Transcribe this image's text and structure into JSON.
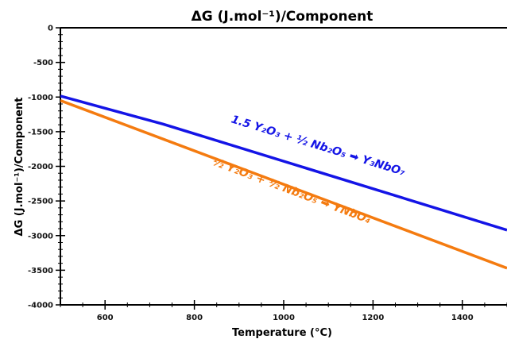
{
  "chart_data": {
    "type": "line",
    "title": "ΔG (J.mol⁻¹)/Component",
    "xlabel": "Temperature (°C)",
    "ylabel": "ΔG (J.mol⁻¹)/Component",
    "xlim": [
      500,
      1500
    ],
    "ylim": [
      -4000,
      0
    ],
    "xticks": [
      600,
      800,
      1000,
      1200,
      1400
    ],
    "yticks": [
      0,
      -500,
      -1000,
      -1500,
      -2000,
      -2500,
      -3000,
      -3500,
      -4000
    ],
    "grid": false,
    "series": [
      {
        "name": "1.5 Y₂O₃ + ½ Nb₂O₅ → Y₃NbO₇",
        "color": "#1414e6",
        "x": [
          500,
          730,
          1500
        ],
        "y": [
          -985,
          -1390,
          -2920
        ]
      },
      {
        "name": "½ Y₂O₃ + ½ Nb₂O₅ → YNbO₄",
        "color": "#f47b10",
        "x": [
          500,
          1500
        ],
        "y": [
          -1050,
          -3470
        ]
      }
    ],
    "annotations": [
      {
        "series": 0,
        "text": "1.5 Y₂O₃ + ½ Nb₂O₅ ➡ Y₃NbO₇",
        "at": [
          1075,
          -1750
        ],
        "color": "#1414e6"
      },
      {
        "series": 1,
        "text": "½ Y₂O₃ + ½ Nb₂O₅ ➡ YNbO₄",
        "at": [
          1015,
          -2400
        ],
        "color": "#f47b10"
      }
    ]
  }
}
